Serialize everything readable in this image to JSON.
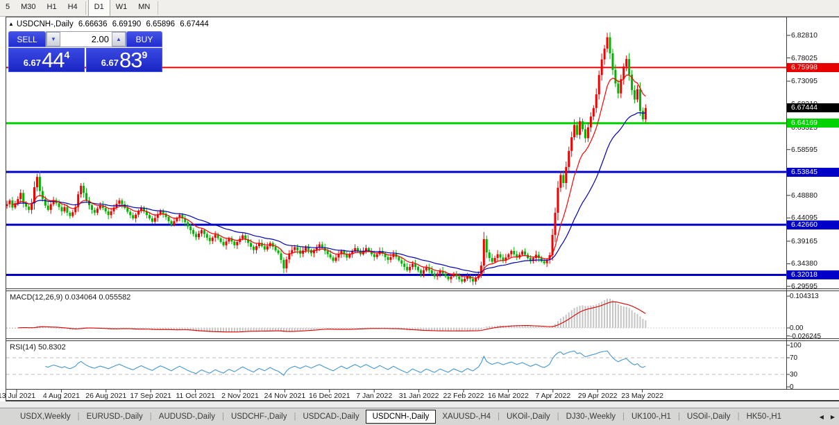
{
  "toolbar": {
    "timeframes": [
      "5",
      "M30",
      "H1",
      "H4",
      "D1",
      "W1",
      "MN"
    ],
    "active": "D1"
  },
  "header": {
    "symbol": "USDCNH-,Daily",
    "open": "6.66636",
    "high": "6.69190",
    "low": "6.65896",
    "close": "6.67444"
  },
  "trade": {
    "sell_label": "SELL",
    "buy_label": "BUY",
    "volume": "2.00",
    "sell_price": {
      "prefix": "6.67",
      "big": "44",
      "sup": "4"
    },
    "buy_price": {
      "prefix": "6.67",
      "big": "83",
      "sup": "9"
    }
  },
  "chart_data": {
    "type": "candlestick",
    "title": "USDCNH-,Daily",
    "x_labels": [
      "13 Jul 2021",
      "4 Aug 2021",
      "26 Aug 2021",
      "17 Sep 2021",
      "11 Oct 2021",
      "2 Nov 2021",
      "24 Nov 2021",
      "16 Dec 2021",
      "7 Jan 2022",
      "31 Jan 2022",
      "22 Feb 2022",
      "16 Mar 2022",
      "7 Apr 2022",
      "29 Apr 2022",
      "23 May 2022"
    ],
    "ylim": [
      6.2885,
      6.863
    ],
    "price_axis_ticks": [
      "6.82810",
      "6.78025",
      "6.73095",
      "6.68210",
      "6.63325",
      "6.58595",
      "6.48880",
      "6.44095",
      "6.39165",
      "6.34380",
      "6.29595"
    ],
    "levels": [
      {
        "value": "6.75998",
        "color": "#e80000",
        "width": 2
      },
      {
        "value": "6.64169",
        "color": "#00d300",
        "width": 3
      },
      {
        "value": "6.53845",
        "color": "#0000c8",
        "width": 3
      },
      {
        "value": "6.42660",
        "color": "#0000c8",
        "width": 3
      },
      {
        "value": "6.32018",
        "color": "#0000c8",
        "width": 3
      }
    ],
    "current_price": "6.67444",
    "up_color": "#f20000",
    "down_color": "#00b400",
    "ma_fast": {
      "period": 10,
      "color": "#ff0000"
    },
    "ma_slow": {
      "period": 30,
      "color": "#0000b4"
    },
    "closes": [
      6.47,
      6.478,
      6.463,
      6.472,
      6.481,
      6.494,
      6.472,
      6.465,
      6.458,
      6.472,
      6.506,
      6.528,
      6.498,
      6.481,
      6.467,
      6.458,
      6.47,
      6.479,
      6.472,
      6.464,
      6.455,
      6.464,
      6.452,
      6.445,
      6.453,
      6.464,
      6.491,
      6.509,
      6.494,
      6.478,
      6.468,
      6.458,
      6.452,
      6.461,
      6.468,
      6.462,
      6.455,
      6.447,
      6.455,
      6.463,
      6.471,
      6.478,
      6.47,
      6.462,
      6.454,
      6.447,
      6.44,
      6.448,
      6.456,
      6.463,
      6.455,
      6.447,
      6.44,
      6.433,
      6.441,
      6.449,
      6.456,
      6.45,
      6.443,
      6.434,
      6.426,
      6.434,
      6.441,
      6.448,
      6.44,
      6.432,
      6.423,
      6.415,
      6.407,
      6.4,
      6.408,
      6.415,
      6.407,
      6.399,
      6.392,
      6.399,
      6.406,
      6.398,
      6.39,
      6.383,
      6.391,
      6.398,
      6.391,
      6.383,
      6.39,
      6.397,
      6.404,
      6.396,
      6.388,
      6.38,
      6.373,
      6.381,
      6.388,
      6.381,
      6.374,
      6.381,
      6.388,
      6.38,
      6.372,
      6.366,
      6.352,
      6.334,
      6.353,
      6.366,
      6.373,
      6.379,
      6.372,
      6.365,
      6.372,
      6.379,
      6.373,
      6.366,
      6.373,
      6.379,
      6.385,
      6.378,
      6.371,
      6.364,
      6.357,
      6.35,
      6.357,
      6.364,
      6.371,
      6.364,
      6.357,
      6.364,
      6.371,
      6.377,
      6.371,
      6.364,
      6.371,
      6.377,
      6.371,
      6.364,
      6.358,
      6.364,
      6.371,
      6.365,
      6.358,
      6.352,
      6.358,
      6.365,
      6.358,
      6.351,
      6.344,
      6.337,
      6.33,
      6.337,
      6.344,
      6.337,
      6.33,
      6.323,
      6.33,
      6.336,
      6.33,
      6.323,
      6.317,
      6.323,
      6.329,
      6.323,
      6.317,
      6.311,
      6.317,
      6.323,
      6.317,
      6.311,
      6.306,
      6.312,
      6.318,
      6.312,
      6.306,
      6.313,
      6.32,
      6.34,
      6.396,
      6.368,
      6.356,
      6.348,
      6.356,
      6.364,
      6.357,
      6.35,
      6.357,
      6.364,
      6.371,
      6.364,
      6.357,
      6.363,
      6.37,
      6.363,
      6.356,
      6.35,
      6.356,
      6.363,
      6.356,
      6.349,
      6.345,
      6.352,
      6.362,
      6.405,
      6.452,
      6.505,
      6.532,
      6.515,
      6.549,
      6.583,
      6.612,
      6.638,
      6.617,
      6.646,
      6.629,
      6.61,
      6.633,
      6.656,
      6.674,
      6.703,
      6.744,
      6.777,
      6.8,
      6.824,
      6.79,
      6.755,
      6.726,
      6.705,
      6.735,
      6.762,
      6.778,
      6.745,
      6.712,
      6.692,
      6.714,
      6.668,
      6.65,
      6.674
    ]
  },
  "indicators": {
    "macd": {
      "label": "MACD(12,26,9)",
      "values": "0.034064 0.055582",
      "params": [
        12,
        26,
        9
      ],
      "axis": [
        "0.104313",
        "0.00",
        "-0.026245"
      ],
      "hist_color": "#c4c4c4",
      "signal_color": "#dd0000"
    },
    "rsi": {
      "label": "RSI(14)",
      "value": "50.8302",
      "period": 14,
      "axis": [
        "100",
        "70",
        "30",
        "0"
      ],
      "line_color": "#4596d2",
      "level_high": 70,
      "level_low": 30
    }
  },
  "tabs": {
    "items": [
      "USDX,Weekly",
      "EURUSD-,Daily",
      "AUDUSD-,Daily",
      "USDCHF-,Daily",
      "USDCAD-,Daily",
      "USDCNH-,Daily",
      "XAUUSD-,H4",
      "UKOil-,Daily",
      "DJ30-,Weekly",
      "UK100-,H1",
      "USOil-,Daily",
      "HK50-,H1"
    ],
    "active": "USDCNH-,Daily"
  }
}
